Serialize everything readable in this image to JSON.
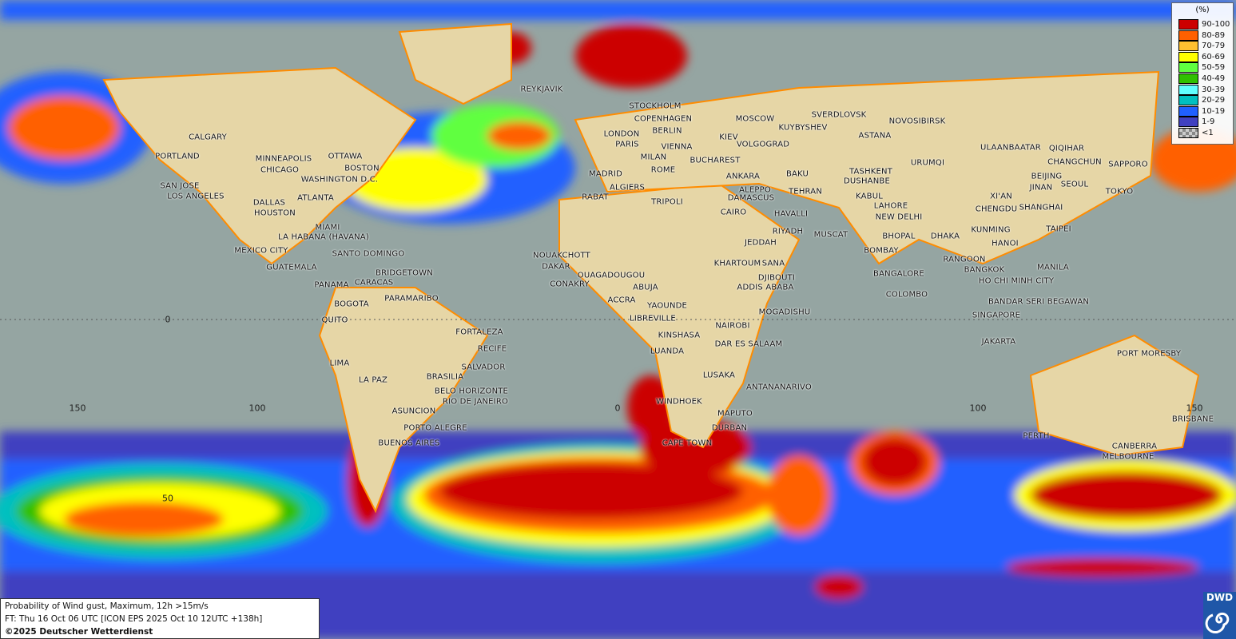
{
  "map": {
    "title": "Probability of Wind gust, Maximum, 12h >15m/s",
    "forecast_line": "FT: Thu 16 Oct 06 UTC [ICON EPS 2025 Oct 10 12UTC +138h]",
    "copyright": "©2025 Deutscher Wetterdienst",
    "logo": "DWD",
    "projection": "cylindrical world map",
    "grid_labels": {
      "lon": [
        "150",
        "100",
        "0",
        "100",
        "150"
      ],
      "lat": [
        "50",
        "0"
      ]
    },
    "ocean_color": "#95a5a2",
    "land_color": "#e6d6a6",
    "coastline_color": "#ff8c00"
  },
  "legend": {
    "unit": "(%)",
    "classes": [
      {
        "label": "90-100",
        "color": "#cc0000"
      },
      {
        "label": "80-89",
        "color": "#ff6000"
      },
      {
        "label": "70-79",
        "color": "#ffc030"
      },
      {
        "label": "60-69",
        "color": "#ffff00"
      },
      {
        "label": "50-59",
        "color": "#60ff40"
      },
      {
        "label": "40-49",
        "color": "#30c000"
      },
      {
        "label": "30-39",
        "color": "#60ffff"
      },
      {
        "label": "20-29",
        "color": "#00c0c0"
      },
      {
        "label": "10-19",
        "color": "#2060ff"
      },
      {
        "label": "1-9",
        "color": "#4040c0"
      },
      {
        "label": "<1",
        "color": "checkered-gray"
      }
    ]
  },
  "cities": [
    "REYKJAVIK",
    "STOCKHOLM",
    "COPENHAGEN",
    "BERLIN",
    "LONDON",
    "PARIS",
    "VIENNA",
    "MILAN",
    "ROME",
    "MADRID",
    "ALGIERS",
    "RABAT",
    "TRIPOLI",
    "BUCHAREST",
    "ANKARA",
    "ALEPPO",
    "DAMASCUS",
    "CAIRO",
    "MOSCOW",
    "KIEV",
    "VOLGOGRAD",
    "SVERDLOVSK",
    "KUYBYSHEV",
    "NOVOSIBIRSK",
    "ASTANA",
    "BAKU",
    "TEHRAN",
    "TASHKENT",
    "DUSHANBE",
    "KABUL",
    "LAHORE",
    "NEW DELHI",
    "HAVALLI",
    "RIYADH",
    "MUSCAT",
    "JEDDAH",
    "BHOPAL",
    "BOMBAY",
    "BANGALORE",
    "COLOMBO",
    "DHAKA",
    "KUNMING",
    "CHENGDU",
    "XI'AN",
    "URUMQI",
    "ULAANBAATAR",
    "QIQIHAR",
    "CHANGCHUN",
    "BEIJING",
    "JINAN",
    "SEOUL",
    "SAPPORO",
    "TOKYO",
    "SHANGHAI",
    "TAIPEI",
    "HANOI",
    "RANGOON",
    "BANGKOK",
    "HO CHI MINH CITY",
    "MANILA",
    "BANDAR SERI BEGAWAN",
    "SINGAPORE",
    "JAKARTA",
    "PORT MORESBY",
    "PERTH",
    "BRISBANE",
    "CANBERRA",
    "MELBOURNE",
    "KHARTOUM",
    "SANA",
    "DJIBOUTI",
    "ADDIS ABABA",
    "MOGADISHU",
    "NAIROBI",
    "DAR ES SALAAM",
    "LUANDA",
    "KINSHASA",
    "LIBREVILLE",
    "YAOUNDE",
    "ABUJA",
    "ACCRA",
    "OUAGADOUGOU",
    "CONAKRY",
    "DAKAR",
    "NOUAKCHOTT",
    "LUSAKA",
    "ANTANANARIVO",
    "WINDHOEK",
    "MAPUTO",
    "DURBAN",
    "CAPE TOWN",
    "CALGARY",
    "PORTLAND",
    "SAN JOSE",
    "LOS ANGELES",
    "MINNEAPOLIS",
    "CHICAGO",
    "OTTAWA",
    "BOSTON",
    "WASHINGTON D.C.",
    "DALLAS",
    "HOUSTON",
    "ATLANTA",
    "MIAMI",
    "LA HABANA (HAVANA)",
    "MEXICO CITY",
    "GUATEMALA",
    "SANTO DOMINGO",
    "BRIDGETOWN",
    "PANAMA",
    "CARACAS",
    "BOGOTA",
    "PARAMARIBO",
    "QUITO",
    "FORTALEZA",
    "RECIFE",
    "LIMA",
    "SALVADOR",
    "BRASILIA",
    "LA PAZ",
    "BELO HORIZONTE",
    "RIO DE JANEIRO",
    "ASUNCION",
    "PORTO ALEGRE",
    "BUENOS AIRES"
  ]
}
